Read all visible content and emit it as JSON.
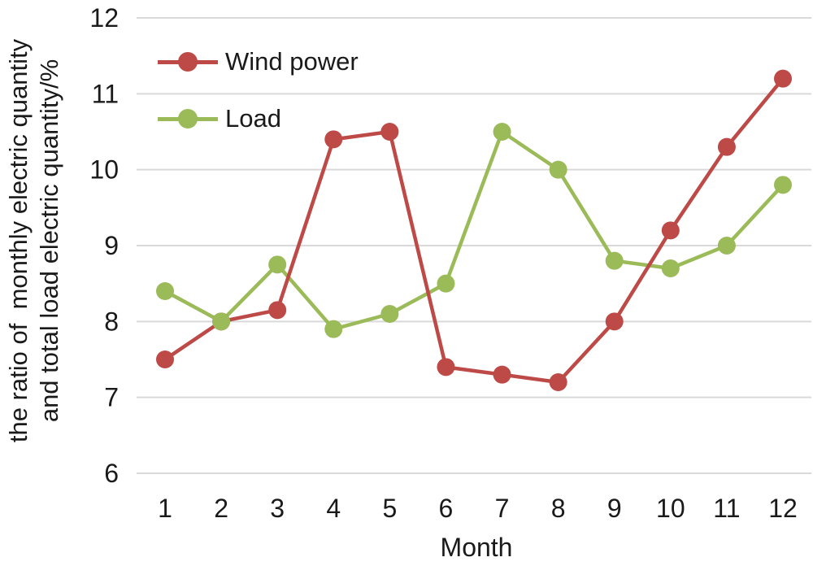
{
  "chart_data": {
    "type": "line",
    "title": "",
    "xlabel": "Month",
    "ylabel_lines": [
      "the ratio of  monthly electric quantity",
      "and total load electric quantity/%"
    ],
    "x": [
      1,
      2,
      3,
      4,
      5,
      6,
      7,
      8,
      9,
      10,
      11,
      12
    ],
    "series": [
      {
        "name": "Wind power",
        "color": "#be4a47",
        "values": [
          7.5,
          8.0,
          8.15,
          10.4,
          10.5,
          7.4,
          7.3,
          7.2,
          8.0,
          9.2,
          10.3,
          11.2
        ]
      },
      {
        "name": "Load",
        "color": "#9bbb59",
        "values": [
          8.4,
          8.0,
          8.75,
          7.9,
          8.1,
          8.5,
          10.5,
          10.0,
          8.8,
          8.7,
          9.0,
          9.8
        ]
      }
    ],
    "ylim": [
      6,
      12
    ],
    "yticks": [
      6,
      7,
      8,
      9,
      10,
      11,
      12
    ],
    "grid": "horizontal",
    "gridline_color": "#d9d9d9",
    "text_color": "#1a1a1a",
    "legend_position": "top-left-inside",
    "marker": "circle"
  }
}
